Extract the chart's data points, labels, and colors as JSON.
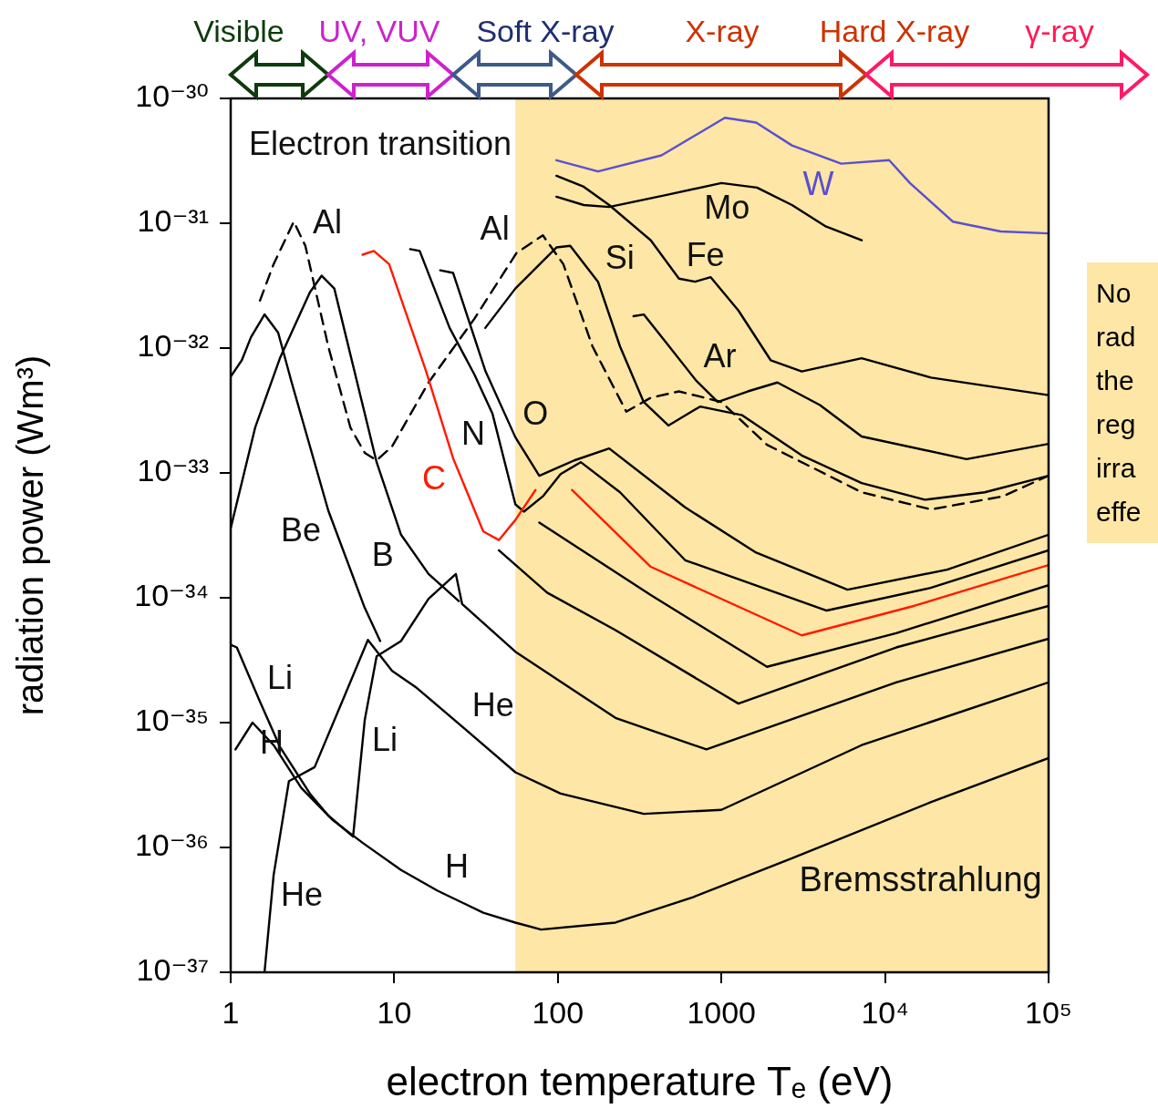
{
  "chart_data": {
    "type": "line",
    "xlabel": "electron temperature Tₑ (eV)",
    "ylabel": "radiation power (Wm³)",
    "log": "xy",
    "grid": false,
    "legend": false,
    "marker": "none",
    "xlim": [
      1,
      100000
    ],
    "ylim": [
      1e-37,
      1e-30
    ],
    "xticks": [
      1,
      10,
      100,
      1000,
      {
        "value": 10000,
        "label": "10⁴"
      },
      {
        "value": 100000,
        "label": "10⁵"
      }
    ],
    "yticks": [
      {
        "value": 1e-37,
        "label": "10⁻³⁷"
      },
      {
        "value": 1e-36,
        "label": "10⁻³⁶"
      },
      {
        "value": 1e-35,
        "label": "10⁻³⁵"
      },
      {
        "value": 1e-34,
        "label": "10⁻³⁴"
      },
      {
        "value": 1e-33,
        "label": "10⁻³³"
      },
      {
        "value": 1e-32,
        "label": "10⁻³²"
      },
      {
        "value": 1e-31,
        "label": "10⁻³¹"
      },
      {
        "value": 1e-30,
        "label": "10⁻³⁰"
      }
    ],
    "series": [
      {
        "color": "#000000",
        "x": [
          1.07,
          1.36,
          1.83,
          2.7,
          4.2,
          6.4,
          11,
          18.4,
          35,
          55,
          79,
          225,
          670,
          2700,
          19000,
          100000
        ],
        "values": [
          6.1e-36,
          1e-35,
          6.6e-36,
          3e-36,
          1.66e-36,
          1.09e-36,
          6.6e-37,
          4.5e-37,
          3e-37,
          2.5e-37,
          2.2e-37,
          2.5e-37,
          4e-37,
          8.2e-37,
          2.3e-36,
          5.2e-36
        ]
      },
      {
        "color": "#000000",
        "x": [
          1.61,
          1.83,
          2.27,
          3.26,
          4.8,
          6.9,
          9.7,
          13.7,
          27,
          55,
          104,
          335,
          1000,
          7200,
          100000
        ],
        "values": [
          1e-37,
          6e-37,
          3.4e-36,
          4.4e-36,
          1.47e-35,
          4.6e-35,
          2.6e-35,
          1.9e-35,
          8.9e-36,
          4e-36,
          2.7e-36,
          1.86e-36,
          2e-36,
          6.6e-36,
          2.1e-35
        ]
      },
      {
        "color": "#000000",
        "x": [
          1,
          1.09,
          1.51,
          2.0,
          3.05,
          3.95,
          5.6,
          6.6,
          7.8,
          11,
          16.2,
          23.8,
          26,
          55,
          225,
          810,
          11700,
          100000
        ],
        "values": [
          4.2e-35,
          4e-35,
          1.47e-35,
          6.4e-36,
          2.7e-36,
          1.8e-36,
          1.22e-36,
          1.05e-35,
          3.4e-35,
          4.5e-35,
          9.8e-35,
          1.55e-34,
          8.9e-35,
          3.7e-35,
          1.09e-35,
          6.1e-36,
          2.1e-35,
          4.7e-35
        ]
      },
      {
        "color": "#000000",
        "x": [
          1,
          1.17,
          1.33,
          1.61,
          1.95,
          2.36,
          3.95,
          6.6,
          8.2,
          20,
          43.6,
          86,
          225,
          1270,
          11700,
          100000
        ],
        "values": [
          5.9e-33,
          8e-33,
          1.22e-32,
          1.86e-32,
          1.33e-32,
          5.3e-33,
          5e-34,
          8.3e-35,
          4.5e-35,
          null,
          2.4e-34,
          1.1e-34,
          5.5e-35,
          1.42e-35,
          4e-35,
          8.6e-35
        ]
      },
      {
        "color": "#000000",
        "x": [
          1,
          1.41,
          2.0,
          3.05,
          3.6,
          4.3,
          7.8,
          11,
          16.2,
          24.8,
          50,
          77,
          370,
          1900,
          11700,
          100000
        ],
        "values": [
          3.6e-34,
          2.3e-33,
          8.3e-33,
          2.8e-32,
          3.8e-32,
          3e-32,
          1.22e-33,
          3.2e-34,
          1.55e-34,
          9.4e-35,
          null,
          4e-34,
          1.05e-34,
          2.8e-35,
          5.2e-35,
          1.26e-34
        ]
      },
      {
        "color": "#ff1a00",
        "x": [
          6.4,
          7.5,
          9.3,
          15.6,
          22.9,
          35,
          43.6,
          55,
          73,
          100,
          122,
          370,
          3100,
          15000,
          100000
        ],
        "values": [
          5.6e-32,
          6e-32,
          4.7e-32,
          6.6e-33,
          1.31e-33,
          3.4e-34,
          2.9e-34,
          4.2e-34,
          7.3e-34,
          null,
          7.3e-34,
          1.77e-34,
          5e-35,
          8.6e-35,
          1.83e-34
        ]
      },
      {
        "color": "#000000",
        "x": [
          12.5,
          14.3,
          21.8,
          30.8,
          39.8,
          55,
          62,
          81,
          104,
          138,
          240,
          600,
          4400,
          19000,
          100000
        ],
        "values": [
          6.2e-32,
          6e-32,
          1.45e-32,
          6.2e-33,
          3e-33,
          5.6e-34,
          4.9e-34,
          6.5e-34,
          9.8e-34,
          1.22e-33,
          7e-34,
          2e-34,
          7.9e-35,
          1.2e-34,
          2.4e-34
        ]
      },
      {
        "color": "#000000",
        "x": [
          19.1,
          22.9,
          36,
          55,
          77,
          126,
          206,
          600,
          1630,
          5900,
          24000,
          100000
        ],
        "values": [
          4.2e-32,
          4e-32,
          6.6e-33,
          1.93e-33,
          9.5e-34,
          1.26e-33,
          1.57e-33,
          5.3e-34,
          2.3e-34,
          1.16e-34,
          1.68e-34,
          3.2e-34
        ]
      },
      {
        "color": "#000000",
        "line_style": "dashed",
        "x": [
          1.51,
          1.83,
          2.43,
          2.86,
          3.95,
          5.4,
          6.6,
          7.8,
          9.7,
          16.2,
          30.8,
          56,
          81,
          108,
          163,
          262,
          370,
          550,
          1000,
          1900,
          7200,
          19100,
          52600,
          100000
        ],
        "values": [
          2.4e-32,
          4.7e-32,
          1.03e-31,
          6.6e-32,
          1.03e-32,
          2.3e-33,
          1.45e-33,
          1.26e-33,
          1.63e-33,
          5.3e-33,
          1.71e-32,
          5.8e-32,
          8e-32,
          4.7e-32,
          1.03e-32,
          3.1e-33,
          4e-33,
          4.5e-33,
          3.7e-33,
          1.68e-33,
          7e-34,
          5.1e-34,
          6.5e-34,
          9.5e-34
        ]
      },
      {
        "color": "#000000",
        "x": [
          36,
          55,
          98,
          119,
          176,
          240,
          335,
          474,
          740,
          1340,
          3100,
          7200,
          17500,
          40700,
          100000
        ],
        "values": [
          1.45e-32,
          3e-32,
          6.4e-32,
          6.6e-32,
          3.4e-32,
          1.03e-32,
          3.7e-33,
          2.4e-33,
          3.4e-33,
          2.9e-33,
          1.38e-33,
          8.3e-34,
          6.1e-34,
          7e-34,
          9.5e-34
        ]
      },
      {
        "color": "#000000",
        "x": [
          290,
          335,
          456,
          700,
          950,
          1450,
          2200,
          4000,
          7200,
          31500,
          100000
        ],
        "values": [
          1.8e-32,
          1.86e-32,
          1.12e-32,
          5.5e-33,
          3.7e-33,
          4.5e-33,
          5.3e-33,
          3.5e-33,
          1.96e-33,
          1.29e-33,
          1.71e-33
        ]
      },
      {
        "color": "#000000",
        "x": [
          98,
          144,
          206,
          370,
          550,
          690,
          860,
          1270,
          2000,
          3100,
          7200,
          19100,
          100000
        ],
        "values": [
          2.4e-31,
          1.96e-31,
          1.4e-31,
          7.3e-32,
          3.6e-32,
          3.4e-32,
          3.7e-32,
          2e-32,
          8e-33,
          6.5e-33,
          8.3e-33,
          5.8e-33,
          4.2e-33
        ]
      },
      {
        "color": "#000000",
        "x": [
          98,
          144,
          206,
          456,
          1000,
          1650,
          2700,
          4300,
          7200
        ],
        "values": [
          1.63e-31,
          1.4e-31,
          1.35e-31,
          1.68e-31,
          2.1e-31,
          1.93e-31,
          1.4e-31,
          9.5e-32,
          7.3e-32
        ]
      },
      {
        "color": "#5a4fcf",
        "x": [
          98,
          176,
          430,
          1050,
          1630,
          2700,
          5400,
          10600,
          14200,
          26000,
          51000,
          100000
        ],
        "values": [
          3.2e-31,
          2.6e-31,
          3.5e-31,
          7e-31,
          6.4e-31,
          4.2e-31,
          3e-31,
          3.2e-31,
          2.1e-31,
          1.03e-31,
          8.6e-32,
          8.3e-32
        ]
      }
    ],
    "bands": [
      {
        "axis": "x",
        "from": 55,
        "to": 100000,
        "color": "#fde6a6"
      }
    ],
    "annotations": [
      "Electron transition",
      "No\nrad\nthe\nreg\nirra\neffe",
      "Visible",
      "UV, VUV",
      "Soft X-ray",
      "X-ray",
      "Hard X-ray",
      "γ-ray",
      {
        "text": "Bremsstrahlung",
        "x": 2700,
        "y": 8.2e-37
      },
      {
        "text": "Al",
        "x": 2.86,
        "y": 6.6e-32
      },
      {
        "text": "Al",
        "x": 56,
        "y": 5.8e-32
      },
      {
        "text": "Si",
        "x": 176,
        "y": 3.4e-32
      },
      {
        "text": "Fe",
        "x": 550,
        "y": 3.6e-32
      },
      {
        "text": "Mo",
        "x": 1650,
        "y": 1.93e-31
      },
      {
        "text": "W",
        "x": 5400,
        "y": 3e-31
      },
      {
        "text": "Ar",
        "x": 700,
        "y": 5.5e-33
      },
      {
        "text": "O",
        "x": 55,
        "y": 1.93e-33
      },
      {
        "text": "N",
        "x": 39.8,
        "y": 3e-33
      },
      {
        "text": "C",
        "x": 22.9,
        "y": 1.31e-33
      },
      {
        "text": "B",
        "x": 11,
        "y": 3.2e-34
      },
      {
        "text": "Be",
        "x": 3.95,
        "y": 5e-34
      },
      {
        "text": "Li",
        "x": 1.51,
        "y": 1.47e-35
      },
      {
        "text": "Li",
        "x": 6.6,
        "y": 1.05e-35
      },
      {
        "text": "He",
        "x": 27,
        "y": 8.9e-36
      },
      {
        "text": "H",
        "x": 1.36,
        "y": 1e-35
      },
      {
        "text": "He",
        "x": 1.83,
        "y": 6e-37
      },
      {
        "text": "H",
        "x": 18.4,
        "y": 4.5e-37
      }
    ]
  }
}
